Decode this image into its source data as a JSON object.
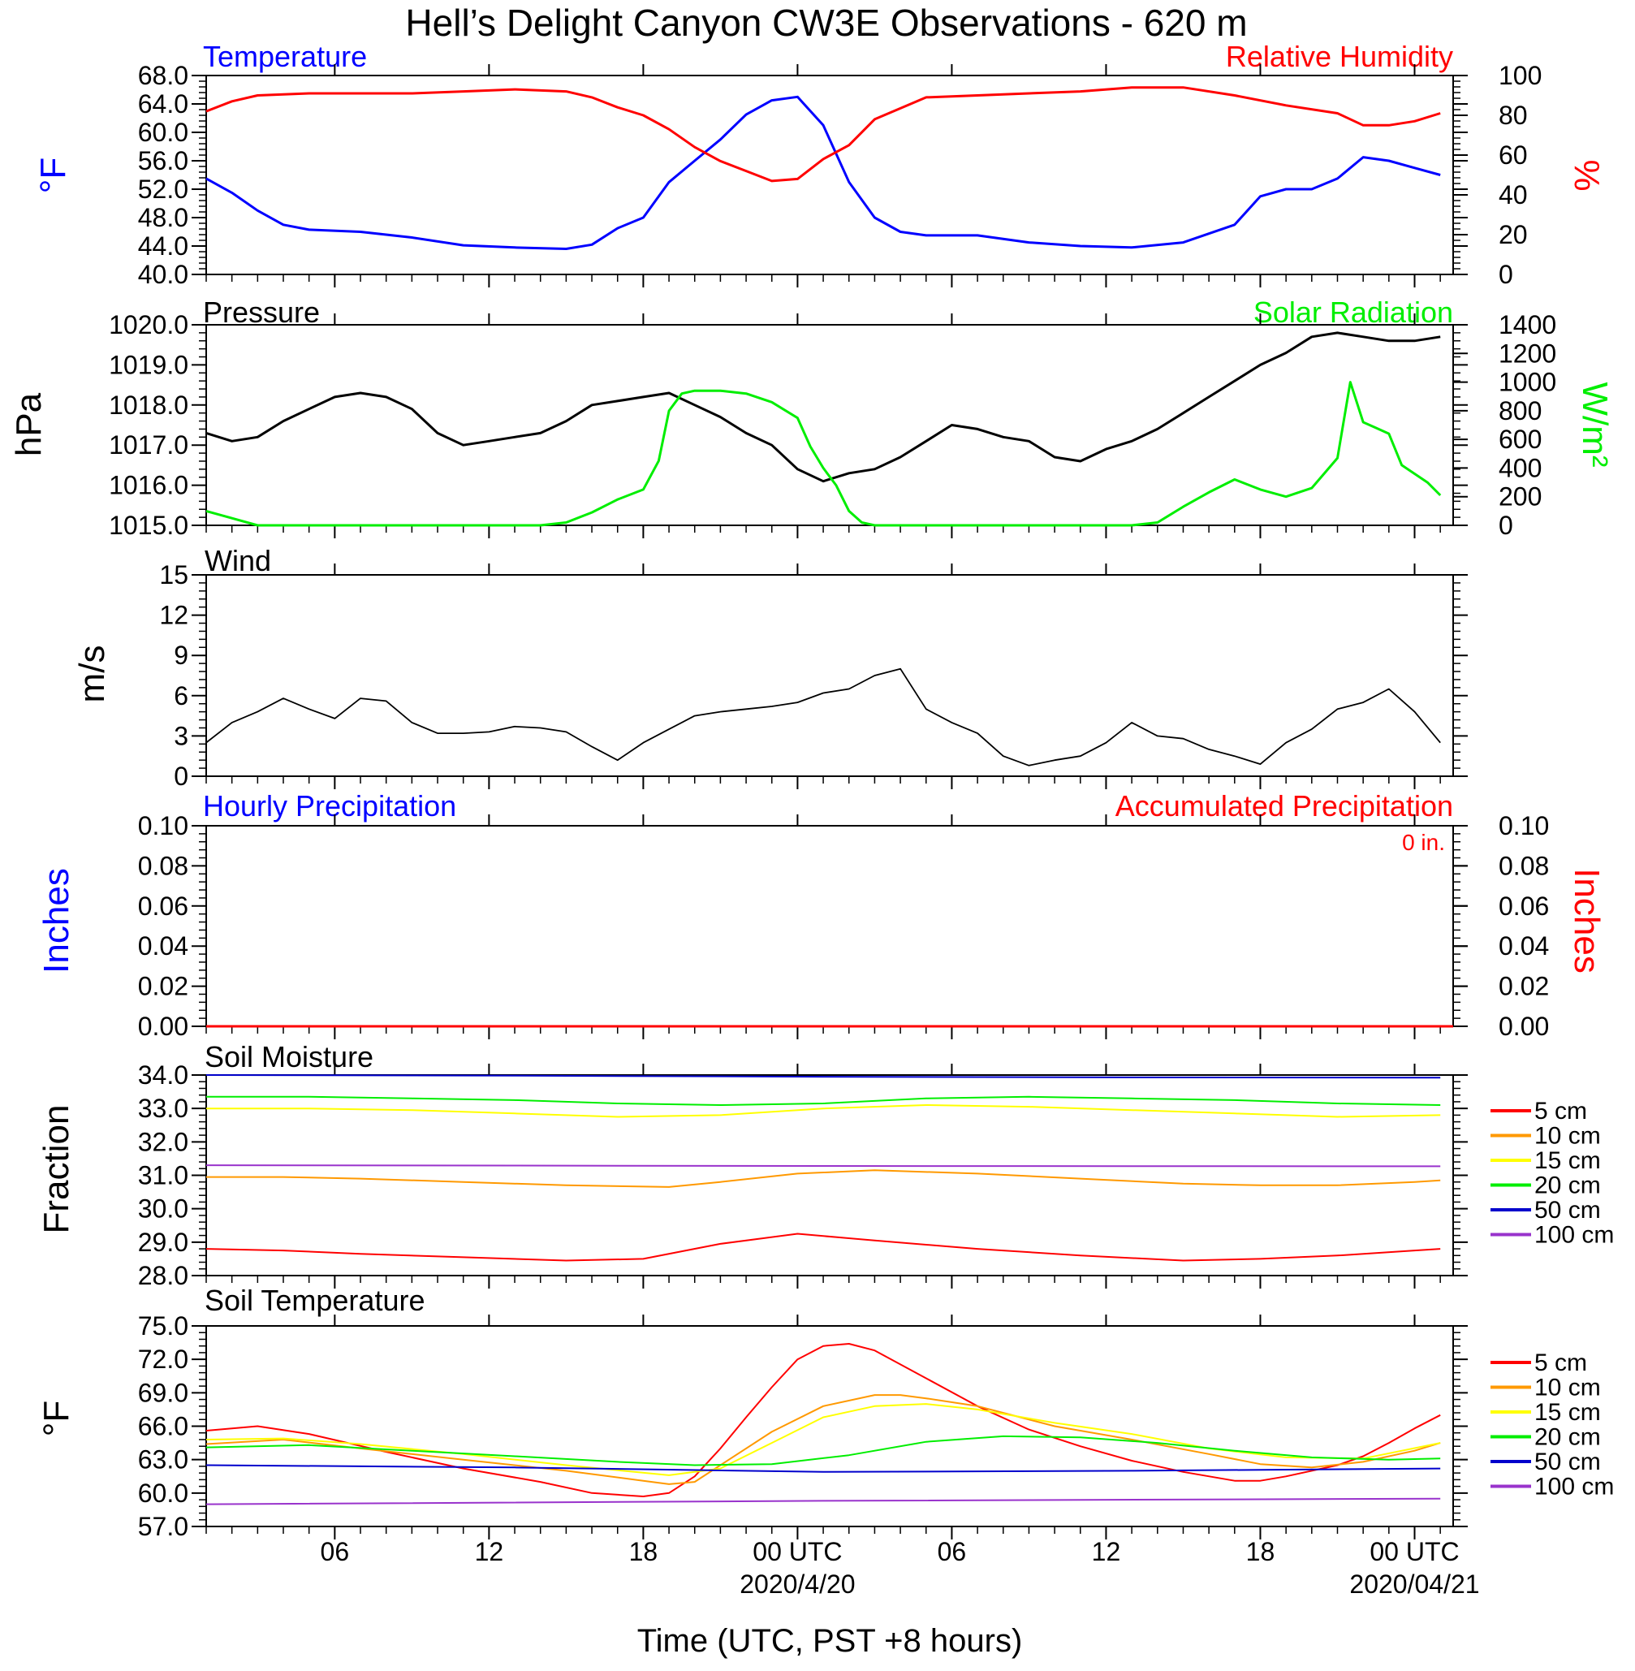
{
  "title": "Hell’s Delight Canyon CW3E Observations - 620 m",
  "colors": {
    "blue": "#0000ff",
    "red": "#ff0000",
    "green": "#00ee00",
    "black": "#000000",
    "orange": "#ff9900",
    "yellow": "#ffff00",
    "navy": "#0000cc",
    "purple": "#9933cc"
  },
  "time_axis": {
    "xmin": 0,
    "xmax": 48.5,
    "major_ticks": [
      5,
      11,
      17,
      23,
      29,
      35,
      41,
      47
    ],
    "tick_labels": [
      "06",
      "12",
      "18",
      "00 UTC",
      "06",
      "12",
      "18",
      "00 UTC"
    ],
    "date_labels": [
      {
        "at": 23,
        "text": "2020/4/20"
      },
      {
        "at": 47,
        "text": "2020/04/21"
      }
    ],
    "xlabel": "Time (UTC, PST +8 hours)"
  },
  "panels": {
    "temperature": {
      "left_title": "Temperature",
      "right_title": "Relative Humidity",
      "left_unit": "°F",
      "right_unit": "%",
      "ylim": [
        40,
        68
      ],
      "yticks": [
        "40.0",
        "44.0",
        "48.0",
        "52.0",
        "56.0",
        "60.0",
        "64.0",
        "68.0"
      ],
      "y2lim": [
        0,
        100
      ],
      "y2ticks": [
        "0",
        "20",
        "40",
        "60",
        "80",
        "100"
      ]
    },
    "pressure": {
      "left_title": "Pressure",
      "right_title": "Solar Radiation",
      "left_unit": "hPa",
      "right_unit": "W/m²",
      "ylim": [
        1015,
        1020
      ],
      "yticks": [
        "1015.0",
        "1016.0",
        "1017.0",
        "1018.0",
        "1019.0",
        "1020.0"
      ],
      "y2lim": [
        0,
        1400
      ],
      "y2ticks": [
        "0",
        "200",
        "400",
        "600",
        "800",
        "1000",
        "1200",
        "1400"
      ]
    },
    "wind": {
      "left_title": "Wind",
      "left_unit": "m/s",
      "ylim": [
        0,
        15
      ],
      "yticks": [
        "0",
        "3",
        "6",
        "9",
        "12",
        "15"
      ]
    },
    "precip": {
      "left_title": "Hourly Precipitation",
      "right_title": "Accumulated Precipitation",
      "accum_label": "0 in.",
      "left_unit": "Inches",
      "right_unit": "Inches",
      "ylim": [
        0,
        0.1
      ],
      "yticks": [
        "0.00",
        "0.02",
        "0.04",
        "0.06",
        "0.08",
        "0.10"
      ],
      "y2ticks": [
        "0.00",
        "0.02",
        "0.04",
        "0.06",
        "0.08",
        "0.10"
      ]
    },
    "soil_moisture": {
      "left_title": "Soil Moisture",
      "left_unit": "Fraction",
      "ylim": [
        28,
        34
      ],
      "yticks": [
        "28.0",
        "29.0",
        "30.0",
        "31.0",
        "32.0",
        "33.0",
        "34.0"
      ],
      "legend": [
        "5 cm",
        "10 cm",
        "15 cm",
        "20 cm",
        "50 cm",
        "100 cm"
      ]
    },
    "soil_temperature": {
      "left_title": "Soil Temperature",
      "left_unit": "°F",
      "ylim": [
        57,
        75
      ],
      "yticks": [
        "57.0",
        "60.0",
        "63.0",
        "66.0",
        "69.0",
        "72.0",
        "75.0"
      ],
      "legend": [
        "5 cm",
        "10 cm",
        "15 cm",
        "20 cm",
        "50 cm",
        "100 cm"
      ]
    }
  },
  "chart_data": [
    {
      "type": "line",
      "name": "temperature",
      "series": [
        {
          "name": "Temperature",
          "color": "blue",
          "axis": "left",
          "x": [
            0,
            1,
            2,
            3,
            4,
            6,
            8,
            10,
            12,
            14,
            15,
            16,
            17,
            18,
            19,
            20,
            21,
            22,
            23,
            24,
            25,
            26,
            27,
            28,
            30,
            32,
            34,
            36,
            38,
            40,
            41,
            42,
            43,
            44,
            45,
            46,
            47,
            48
          ],
          "y": [
            53.5,
            51.5,
            49,
            47,
            46.3,
            46,
            45.2,
            44.1,
            43.8,
            43.6,
            44.2,
            46.5,
            48,
            53,
            56,
            59,
            62.5,
            64.5,
            65,
            61,
            53,
            48,
            46,
            45.5,
            45.5,
            44.5,
            44,
            43.8,
            44.5,
            47,
            51,
            52,
            52,
            53.5,
            56.5,
            56,
            55,
            54
          ]
        },
        {
          "name": "Relative Humidity",
          "color": "red",
          "axis": "right",
          "x": [
            0,
            1,
            2,
            4,
            6,
            8,
            10,
            12,
            14,
            15,
            16,
            17,
            18,
            19,
            20,
            21,
            22,
            23,
            24,
            25,
            26,
            28,
            30,
            32,
            34,
            36,
            38,
            40,
            42,
            44,
            45,
            46,
            47,
            48
          ],
          "y": [
            82,
            87,
            90,
            91,
            91,
            91,
            92,
            93,
            92,
            89,
            84,
            80,
            73,
            64,
            57,
            52,
            47,
            48,
            58,
            65,
            78,
            89,
            90,
            91,
            92,
            94,
            94,
            90,
            85,
            81,
            75,
            75,
            77,
            81
          ]
        }
      ]
    },
    {
      "type": "line",
      "name": "pressure",
      "series": [
        {
          "name": "Pressure",
          "color": "black",
          "axis": "left",
          "x": [
            0,
            1,
            2,
            3,
            4,
            5,
            6,
            7,
            8,
            9,
            10,
            11,
            12,
            13,
            14,
            15,
            16,
            17,
            18,
            19,
            20,
            21,
            22,
            23,
            24,
            25,
            26,
            27,
            28,
            29,
            30,
            31,
            32,
            33,
            34,
            35,
            36,
            37,
            38,
            39,
            40,
            41,
            42,
            43,
            44,
            45,
            46,
            47,
            48
          ],
          "y": [
            1017.3,
            1017.1,
            1017.2,
            1017.6,
            1017.9,
            1018.2,
            1018.3,
            1018.2,
            1017.9,
            1017.3,
            1017.0,
            1017.1,
            1017.2,
            1017.3,
            1017.6,
            1018.0,
            1018.1,
            1018.2,
            1018.3,
            1018.0,
            1017.7,
            1017.3,
            1017.0,
            1016.4,
            1016.1,
            1016.3,
            1016.4,
            1016.7,
            1017.1,
            1017.5,
            1017.4,
            1017.2,
            1017.1,
            1016.7,
            1016.6,
            1016.9,
            1017.1,
            1017.4,
            1017.8,
            1018.2,
            1018.6,
            1019.0,
            1019.3,
            1019.7,
            1019.8,
            1019.7,
            1019.6,
            1019.6,
            1019.7
          ]
        },
        {
          "name": "Solar Radiation",
          "color": "green",
          "axis": "right",
          "x": [
            0,
            1,
            2,
            4,
            8,
            12,
            13,
            14,
            15,
            16,
            17,
            17.6,
            18,
            18.5,
            19,
            20,
            21,
            22,
            23,
            23.5,
            24,
            24.5,
            25,
            25.5,
            26,
            30,
            36,
            37,
            38,
            39,
            40,
            41,
            42,
            43,
            44,
            44.5,
            45,
            45.5,
            46,
            46.5,
            47,
            47.5,
            48
          ],
          "y": [
            100,
            50,
            0,
            0,
            0,
            0,
            0,
            20,
            90,
            180,
            250,
            450,
            800,
            920,
            940,
            940,
            920,
            860,
            750,
            550,
            400,
            280,
            100,
            20,
            0,
            0,
            0,
            20,
            130,
            230,
            320,
            250,
            200,
            260,
            470,
            1000,
            720,
            680,
            640,
            420,
            360,
            300,
            210
          ]
        }
      ]
    },
    {
      "type": "line",
      "name": "wind",
      "series": [
        {
          "name": "Wind",
          "color": "black",
          "axis": "left",
          "x": [
            0,
            1,
            2,
            3,
            4,
            5,
            6,
            7,
            8,
            9,
            10,
            11,
            12,
            13,
            14,
            15,
            16,
            17,
            18,
            19,
            20,
            21,
            22,
            23,
            24,
            25,
            26,
            27,
            28,
            29,
            30,
            31,
            32,
            33,
            34,
            35,
            36,
            37,
            38,
            39,
            40,
            41,
            42,
            43,
            44,
            45,
            46,
            47,
            48
          ],
          "y": [
            2.5,
            4,
            4.8,
            5.8,
            5,
            4.3,
            5.8,
            5.6,
            4,
            3.2,
            3.2,
            3.3,
            3.7,
            3.6,
            3.3,
            2.2,
            1.2,
            2.5,
            3.5,
            4.5,
            4.8,
            5,
            5.2,
            5.5,
            6.2,
            6.5,
            7.5,
            8,
            5,
            4,
            3.2,
            1.5,
            0.8,
            1.2,
            1.5,
            2.5,
            4,
            3,
            2.8,
            2,
            1.5,
            0.9,
            2.5,
            3.5,
            5,
            5.5,
            6.5,
            4.8,
            2.5
          ]
        }
      ]
    },
    {
      "type": "line",
      "name": "precipitation",
      "series": [
        {
          "name": "Hourly Precipitation",
          "color": "blue",
          "axis": "left",
          "x": [
            0,
            48.5
          ],
          "y": [
            0,
            0
          ]
        },
        {
          "name": "Accumulated Precipitation",
          "color": "red",
          "axis": "right",
          "x": [
            0,
            48.5
          ],
          "y": [
            0,
            0
          ]
        }
      ]
    },
    {
      "type": "line",
      "name": "soil_moisture",
      "series": [
        {
          "name": "5 cm",
          "color": "red",
          "x": [
            0,
            3,
            6,
            10,
            14,
            17,
            20,
            23,
            26,
            30,
            34,
            38,
            41,
            44,
            47,
            48
          ],
          "y": [
            28.8,
            28.75,
            28.65,
            28.55,
            28.45,
            28.5,
            28.95,
            29.25,
            29.05,
            28.8,
            28.6,
            28.45,
            28.5,
            28.6,
            28.75,
            28.8
          ]
        },
        {
          "name": "10 cm",
          "color": "orange",
          "x": [
            0,
            3,
            6,
            10,
            14,
            18,
            20,
            23,
            26,
            30,
            34,
            38,
            41,
            44,
            47,
            48
          ],
          "y": [
            30.95,
            30.95,
            30.9,
            30.8,
            30.7,
            30.65,
            30.8,
            31.05,
            31.15,
            31.05,
            30.9,
            30.75,
            30.7,
            30.7,
            30.8,
            30.85
          ]
        },
        {
          "name": "15 cm",
          "color": "yellow",
          "x": [
            0,
            4,
            8,
            12,
            16,
            20,
            24,
            28,
            32,
            36,
            40,
            44,
            48
          ],
          "y": [
            33.0,
            33.0,
            32.95,
            32.85,
            32.75,
            32.8,
            33.0,
            33.1,
            33.05,
            32.95,
            32.85,
            32.75,
            32.8
          ]
        },
        {
          "name": "20 cm",
          "color": "green",
          "x": [
            0,
            4,
            8,
            12,
            16,
            20,
            24,
            28,
            32,
            36,
            40,
            44,
            48
          ],
          "y": [
            33.35,
            33.35,
            33.3,
            33.25,
            33.15,
            33.1,
            33.15,
            33.3,
            33.35,
            33.3,
            33.25,
            33.15,
            33.1
          ]
        },
        {
          "name": "50 cm",
          "color": "navy",
          "x": [
            0,
            12,
            24,
            36,
            48
          ],
          "y": [
            34.0,
            33.98,
            33.95,
            33.93,
            33.92
          ]
        },
        {
          "name": "100 cm",
          "color": "purple",
          "x": [
            0,
            24,
            48
          ],
          "y": [
            31.3,
            31.28,
            31.27
          ]
        }
      ]
    },
    {
      "type": "line",
      "name": "soil_temperature",
      "series": [
        {
          "name": "5 cm",
          "color": "red",
          "x": [
            0,
            2,
            4,
            7,
            10,
            13,
            15,
            17,
            18,
            19,
            20,
            21,
            22,
            23,
            24,
            25,
            26,
            28,
            30,
            32,
            34,
            36,
            38,
            40,
            41,
            42,
            44,
            45,
            46,
            47,
            48
          ],
          "y": [
            65.6,
            66,
            65.3,
            63.7,
            62.2,
            61,
            60,
            59.7,
            60,
            61.5,
            64,
            66.8,
            69.5,
            72,
            73.2,
            73.4,
            72.8,
            70.3,
            67.8,
            65.7,
            64.2,
            62.9,
            61.9,
            61.1,
            61.1,
            61.5,
            62.5,
            63.3,
            64.5,
            65.8,
            67
          ]
        },
        {
          "name": "10 cm",
          "color": "orange",
          "x": [
            0,
            3,
            6,
            10,
            14,
            17,
            18,
            19,
            20,
            22,
            24,
            26,
            27,
            28,
            30,
            33,
            36,
            39,
            41,
            43,
            45,
            47,
            48
          ],
          "y": [
            64.4,
            64.8,
            64,
            63,
            62,
            61.1,
            60.8,
            61,
            62.5,
            65.5,
            67.8,
            68.8,
            68.8,
            68.5,
            67.8,
            66,
            64.8,
            63.5,
            62.6,
            62.3,
            62.8,
            63.8,
            64.5
          ]
        },
        {
          "name": "15 cm",
          "color": "yellow",
          "x": [
            0,
            3,
            6,
            10,
            14,
            18,
            20,
            22,
            24,
            26,
            28,
            30,
            33,
            36,
            39,
            42,
            45,
            48
          ],
          "y": [
            64.8,
            64.9,
            64.4,
            63.5,
            62.5,
            61.6,
            62.2,
            64.5,
            66.8,
            67.8,
            68,
            67.5,
            66.3,
            65.3,
            64,
            63.2,
            63.1,
            64.5
          ]
        },
        {
          "name": "20 cm",
          "color": "green",
          "x": [
            0,
            4,
            8,
            12,
            16,
            19,
            22,
            25,
            28,
            31,
            34,
            37,
            40,
            43,
            46,
            48
          ],
          "y": [
            64.1,
            64.3,
            63.8,
            63.3,
            62.8,
            62.5,
            62.6,
            63.4,
            64.6,
            65.1,
            65.0,
            64.5,
            63.8,
            63.2,
            63.0,
            63.1
          ]
        },
        {
          "name": "50 cm",
          "color": "navy",
          "x": [
            0,
            12,
            24,
            36,
            48
          ],
          "y": [
            62.5,
            62.3,
            61.9,
            62,
            62.2
          ]
        },
        {
          "name": "100 cm",
          "color": "purple",
          "x": [
            0,
            24,
            48
          ],
          "y": [
            59.0,
            59.3,
            59.5
          ]
        }
      ]
    }
  ]
}
